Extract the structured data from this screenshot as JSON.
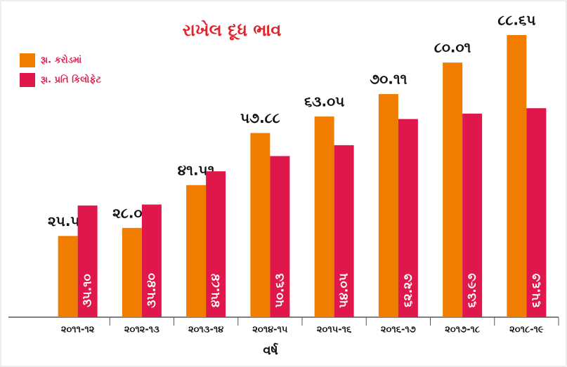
{
  "chart_data": {
    "type": "bar",
    "title": "રાખેલ દૂધ ભાવ",
    "x_label": "વર્ષ",
    "categories": [
      "૨૦૧૧-૧૨",
      "૨૦૧૨-૧૩",
      "૨૦૧૩-૧૪",
      "૨૦૧૪-૧૫",
      "૨૦૧૫-૧૬",
      "૨૦૧૬-૧૭",
      "૨૦૧૭-૧૮",
      "૨૦૧૮-૧૯"
    ],
    "series": [
      {
        "name": "રૂા. કરોડમાં",
        "color": "#f07d00",
        "values": [
          25.52,
          28.05,
          41.51,
          57.88,
          63.05,
          70.11,
          80.01,
          88.65
        ],
        "value_labels": [
          "૨૫.૫૨",
          "૨૮.૦૫",
          "૪૧.૫૧",
          "૫૭.૮૮",
          "૬૩.૦૫",
          "૭૦.૧૧",
          "૮૦.૦૧",
          "૮૮.૬૫"
        ]
      },
      {
        "name": "રૂા. પ્રતિ કિલોફેટ",
        "color": "#e0174b",
        "values": [
          35.1,
          35.4,
          45.84,
          50.63,
          54.05,
          62.27,
          63.97,
          65.67
        ],
        "value_labels": [
          "૩૫.૧૦",
          "૩૫.૪૦",
          "૪૫.૮૪",
          "૫૦.૬૩",
          "૫૪.૦૫",
          "૬૨.૨૭",
          "૬૩.૯૭",
          "૬૫.૬૭"
        ]
      }
    ],
    "legend": "top-left"
  }
}
